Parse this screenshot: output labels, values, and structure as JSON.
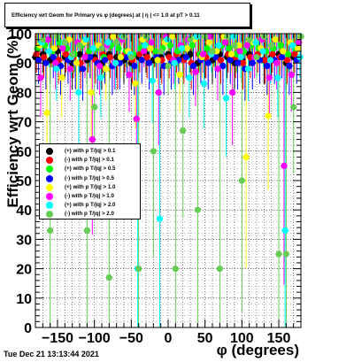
{
  "title": "Efficiency wrt Geom for Primary vs φ (degrees) at | η | <= 1.0 at pT > 0.11",
  "timestamp": "Tue Dec 21 13:13:44 2021",
  "colors": {
    "pos_01": "#000000",
    "neg_01": "#ff0000",
    "pos_05": "#00ff00",
    "neg_05": "#0000ff",
    "pos_10": "#ffff00",
    "neg_10": "#ff00ff",
    "pos_20": "#00ffff",
    "neg_20": "#66cc55"
  },
  "legend": [
    {
      "label": "(+) with p T/|q| > 0.1",
      "color_key": "pos_01"
    },
    {
      "label": "(-) with p T/|q| > 0.1",
      "color_key": "neg_01"
    },
    {
      "label": "(+) with p T/|q| > 0.5",
      "color_key": "pos_05"
    },
    {
      "label": "(-) with p T/|q| > 0.5",
      "color_key": "neg_05"
    },
    {
      "label": "(+) with p T/|q| > 1.0",
      "color_key": "pos_10"
    },
    {
      "label": "(-) with p T/|q| > 1.0",
      "color_key": "neg_10"
    },
    {
      "label": "(+) with p T/|q| > 2.0",
      "color_key": "pos_20"
    },
    {
      "label": "(-) with p T/|q| > 2.0",
      "color_key": "neg_20"
    }
  ],
  "chart_data": {
    "type": "scatter",
    "title": "Efficiency wrt Geom for Primary vs φ (degrees) at | η | <= 1.0 at pT > 0.11",
    "xlabel": "φ (degrees)",
    "ylabel": "Efficiency wrt Geom (%)",
    "xlim": [
      -180,
      180
    ],
    "ylim": [
      0,
      100
    ],
    "xticks": [
      -150,
      -100,
      -50,
      0,
      50,
      100,
      150
    ],
    "yticks": [
      0,
      10,
      20,
      30,
      40,
      50,
      60,
      70,
      80,
      90,
      100
    ],
    "grid": true,
    "legend_position": "center-left",
    "series": [
      {
        "name": "(+) with p T/|q| > 0.1",
        "color_key": "pos_01",
        "x": [
          -175,
          -165,
          -155,
          -145,
          -135,
          -125,
          -115,
          -105,
          -95,
          -85,
          -75,
          -65,
          -55,
          -45,
          -35,
          -25,
          -15,
          -5,
          5,
          15,
          25,
          35,
          45,
          55,
          65,
          75,
          85,
          95,
          105,
          115,
          125,
          135,
          145,
          155,
          165,
          175
        ],
        "y": [
          92,
          93,
          91,
          94,
          92,
          90,
          93,
          91,
          92,
          90,
          93,
          92,
          91,
          90,
          92,
          93,
          91,
          92,
          93,
          91,
          92,
          93,
          90,
          92,
          91,
          93,
          92,
          90,
          91,
          93,
          92,
          91,
          92,
          93,
          90,
          92
        ]
      },
      {
        "name": "(-) with p T/|q| > 0.1",
        "color_key": "neg_01",
        "x": [
          -175,
          -165,
          -155,
          -145,
          -135,
          -125,
          -115,
          -105,
          -95,
          -85,
          -75,
          -65,
          -55,
          -45,
          -35,
          -25,
          -15,
          -5,
          5,
          15,
          25,
          35,
          45,
          55,
          65,
          75,
          85,
          95,
          105,
          115,
          125,
          135,
          145,
          155,
          165,
          175
        ],
        "y": [
          93,
          92,
          94,
          91,
          93,
          92,
          90,
          93,
          91,
          93,
          92,
          90,
          93,
          91,
          93,
          92,
          94,
          91,
          92,
          93,
          91,
          90,
          93,
          92,
          94,
          91,
          93,
          92,
          90,
          92,
          93,
          91,
          93,
          92,
          91,
          93
        ]
      },
      {
        "name": "(+) with p T/|q| > 0.5",
        "color_key": "pos_05",
        "x": [
          -175,
          -165,
          -155,
          -145,
          -135,
          -125,
          -115,
          -105,
          -95,
          -85,
          -75,
          -65,
          -55,
          -45,
          -35,
          -25,
          -15,
          -5,
          5,
          15,
          25,
          35,
          45,
          55,
          65,
          75,
          85,
          95,
          105,
          115,
          125,
          135,
          145,
          155,
          165,
          175
        ],
        "y": [
          95,
          96,
          94,
          97,
          95,
          93,
          96,
          94,
          95,
          92,
          96,
          95,
          94,
          93,
          95,
          96,
          94,
          95,
          96,
          94,
          95,
          96,
          93,
          95,
          94,
          96,
          95,
          93,
          94,
          96,
          95,
          94,
          95,
          96,
          93,
          95
        ]
      },
      {
        "name": "(-) with p T/|q| > 0.5",
        "color_key": "neg_05",
        "x": [
          -175,
          -165,
          -155,
          -145,
          -135,
          -125,
          -115,
          -105,
          -95,
          -85,
          -75,
          -65,
          -55,
          -45,
          -35,
          -25,
          -15,
          -5,
          5,
          15,
          25,
          35,
          45,
          55,
          65,
          75,
          85,
          95,
          105,
          115,
          125,
          135,
          145,
          155,
          165,
          175
        ],
        "y": [
          91,
          90,
          92,
          89,
          91,
          90,
          88,
          92,
          90,
          91,
          89,
          90,
          92,
          89,
          91,
          90,
          92,
          89,
          90,
          91,
          92,
          89,
          91,
          90,
          92,
          89,
          91,
          90,
          88,
          90,
          91,
          89,
          91,
          92,
          89,
          91
        ]
      },
      {
        "name": "(+) with p T/|q| > 1.0",
        "color_key": "pos_10",
        "x": [
          -175,
          -165,
          -155,
          -145,
          -135,
          -125,
          -115,
          -105,
          -95,
          -85,
          -75,
          -65,
          -55,
          -45,
          -35,
          -25,
          -15,
          -5,
          5,
          15,
          25,
          35,
          45,
          55,
          65,
          75,
          85,
          95,
          105,
          115,
          125,
          135,
          145,
          155,
          165,
          175
        ],
        "y": [
          96,
          73,
          95,
          85,
          98,
          90,
          97,
          80,
          96,
          88,
          99,
          92,
          94,
          83,
          98,
          95,
          91,
          97,
          99,
          86,
          95,
          98,
          92,
          97,
          94,
          99,
          93,
          96,
          58,
          97,
          95,
          72,
          98,
          94,
          97,
          95
        ]
      },
      {
        "name": "(-) with p T/|q| > 1.0",
        "color_key": "neg_10",
        "x": [
          -175,
          -165,
          -155,
          -145,
          -135,
          -125,
          -115,
          -105,
          -95,
          -85,
          -75,
          -65,
          -55,
          -45,
          -35,
          -25,
          -15,
          -5,
          5,
          15,
          25,
          35,
          45,
          55,
          65,
          75,
          85,
          95,
          105,
          115,
          125,
          135,
          145,
          155,
          165,
          175
        ],
        "y": [
          85,
          98,
          90,
          95,
          88,
          97,
          92,
          64,
          89,
          96,
          90,
          98,
          86,
          71,
          94,
          97,
          80,
          99,
          91,
          96,
          98,
          87,
          93,
          99,
          88,
          97,
          80,
          94,
          96,
          92,
          98,
          85,
          90,
          55,
          86,
          97
        ]
      },
      {
        "name": "(+) with p T/|q| > 2.0",
        "color_key": "pos_20",
        "x": [
          -175,
          -165,
          -155,
          -145,
          -135,
          -125,
          -115,
          -105,
          -95,
          -85,
          -75,
          -65,
          -55,
          -45,
          -35,
          -25,
          -15,
          -5,
          5,
          15,
          25,
          35,
          45,
          55,
          65,
          75,
          85,
          95,
          105,
          115,
          125,
          135,
          145,
          155,
          165,
          175
        ],
        "y": [
          97,
          94,
          88,
          97,
          92,
          80,
          98,
          95,
          85,
          97,
          90,
          99,
          93,
          20,
          96,
          84,
          37,
          98,
          90,
          95,
          85,
          99,
          83,
          93,
          96,
          78,
          99,
          92,
          88,
          97,
          94,
          91,
          85,
          33,
          96,
          92
        ]
      },
      {
        "name": "(-) with p T/|q| > 2.0",
        "color_key": "neg_20",
        "x": [
          -175,
          -165,
          -155,
          -145,
          -135,
          -125,
          -115,
          -105,
          -95,
          -85,
          -75,
          -65,
          -55,
          -45,
          -35,
          -25,
          -15,
          -5,
          5,
          15,
          25,
          35,
          45,
          55,
          65,
          75,
          85,
          95,
          105,
          115,
          125,
          135,
          145,
          155,
          165,
          175
        ],
        "y": [
          98,
          33,
          99,
          97,
          93,
          96,
          33,
          75,
          95,
          17,
          97,
          99,
          92,
          20,
          99,
          60,
          94,
          89,
          20,
          67,
          98,
          40,
          99,
          94,
          20,
          99,
          96,
          50,
          98,
          92,
          99,
          96,
          25,
          25,
          75,
          99
        ]
      }
    ]
  }
}
